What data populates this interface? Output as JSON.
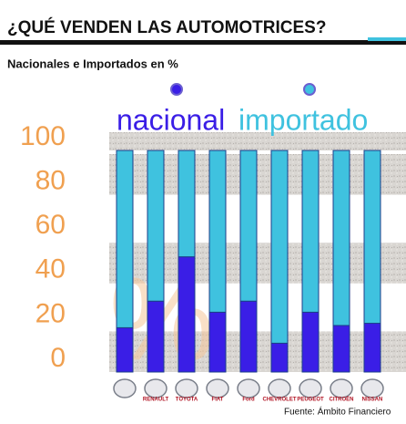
{
  "chart_data": {
    "type": "bar",
    "stacked": true,
    "title": "¿QUÉ VENDEN LAS AUTOMOTRICES?",
    "subtitle": "Nacionales e Importados en %",
    "watermark": "%",
    "source": "Fuente: Ámbito Financiero",
    "categories": [
      null,
      "RENAULT",
      "TOYOTA",
      "FIAT",
      "Ford",
      "CHEVROLET",
      "PEUGEOT",
      "CITROËN",
      "NISSAN"
    ],
    "series": [
      {
        "name": "nacional",
        "color": "#3a1ee6",
        "values": [
          20,
          32,
          52,
          27,
          32,
          13,
          27,
          21,
          22
        ]
      },
      {
        "name": "importado",
        "color": "#3fc2df",
        "values": [
          80,
          68,
          48,
          73,
          68,
          87,
          73,
          79,
          78
        ]
      }
    ],
    "ylim": [
      0,
      100
    ],
    "yticks": [
      0,
      20,
      40,
      60,
      80,
      100
    ],
    "tick_color": "#f0a050"
  }
}
